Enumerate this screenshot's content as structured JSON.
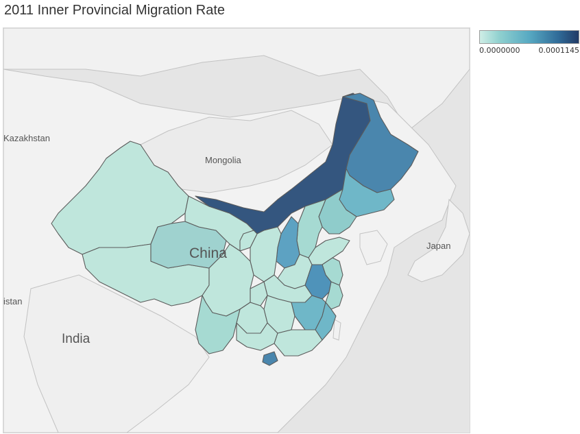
{
  "title": "2011 Inner Provincial Migration Rate",
  "legend": {
    "min_label": "0.0000000",
    "max_label": "0.0001145",
    "color_low": "#cfeee6",
    "color_high": "#223b66"
  },
  "places": {
    "kazakhstan": "Kazakhstan",
    "mongolia": "Mongolia",
    "china": "China",
    "japan": "Japan",
    "india": "India",
    "pakistan": "istan"
  },
  "colors": {
    "background": "#e6e6e6",
    "land": "#f2f2f2",
    "border": "#666666",
    "lightest": "#bfe6dc",
    "light": "#a6dad2",
    "mid": "#7fc4ca",
    "midblue": "#5da2c2",
    "dark": "#4a86ad",
    "darkest": "#34567f"
  }
}
